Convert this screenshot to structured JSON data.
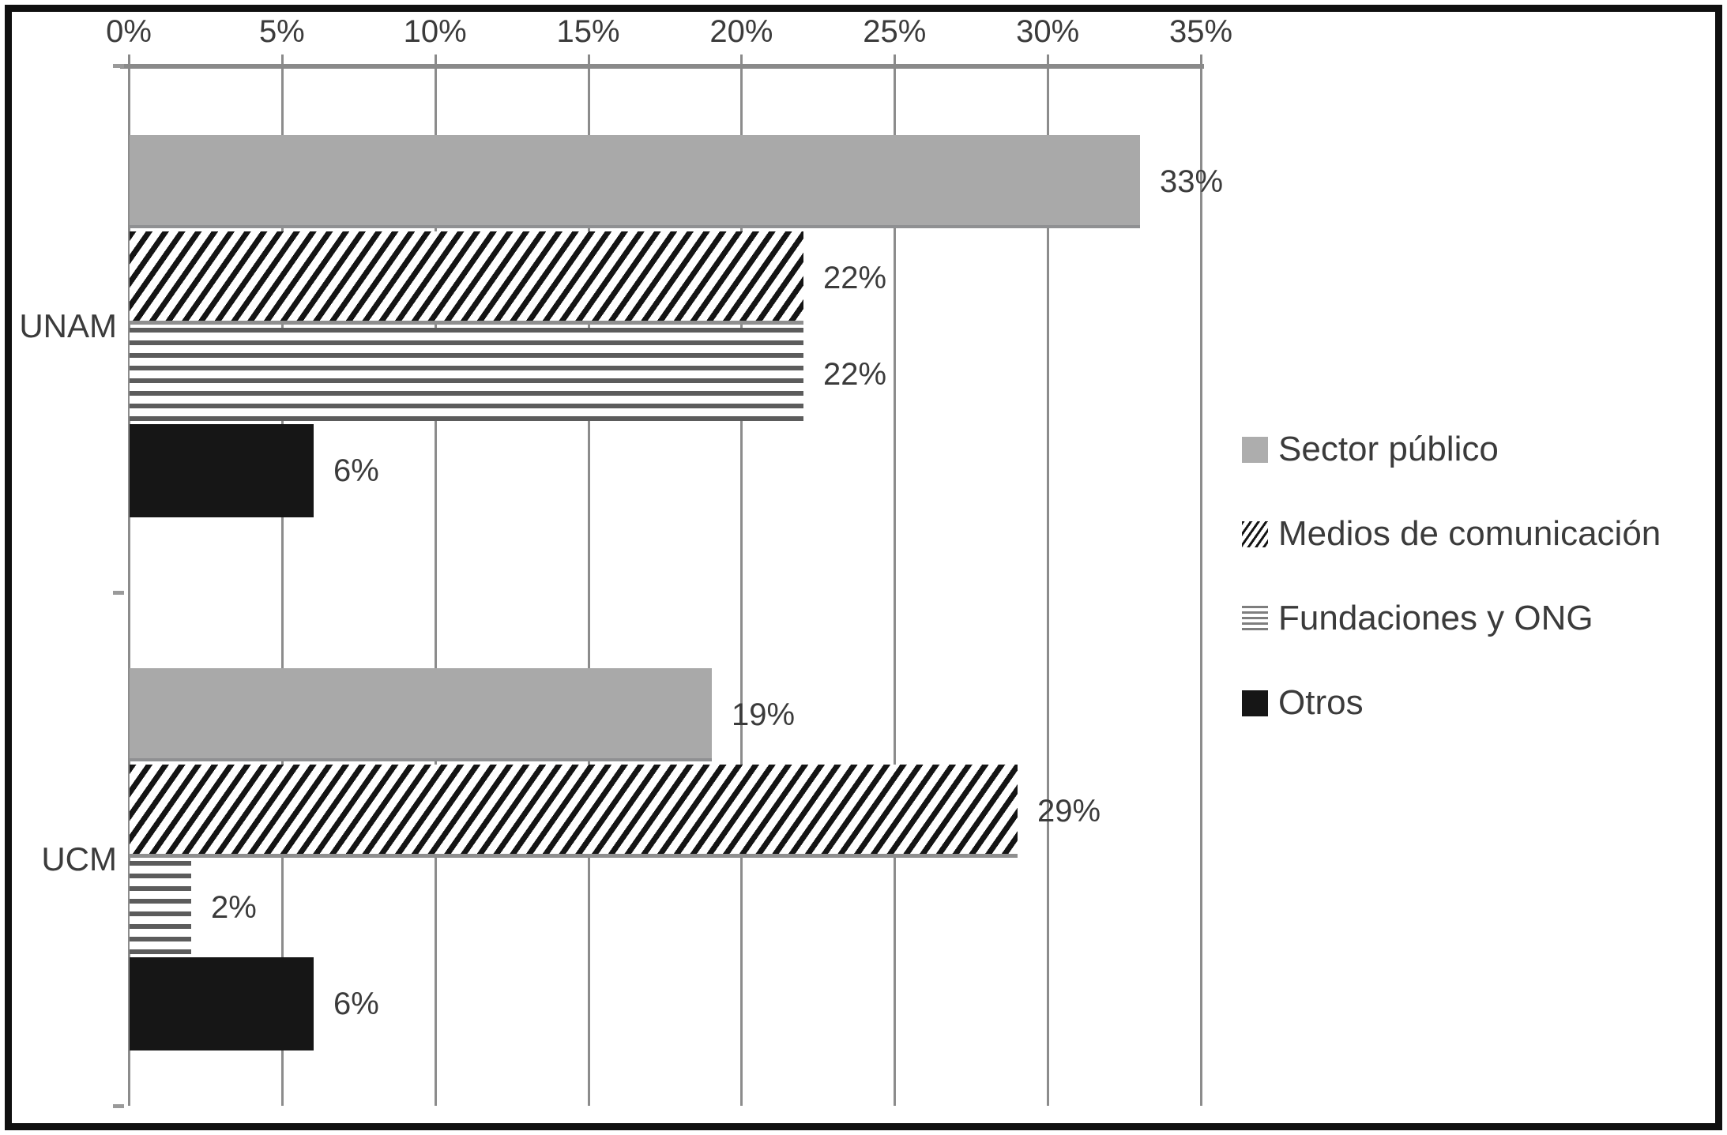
{
  "chart_data": {
    "type": "bar",
    "orientation": "horizontal",
    "title": "",
    "categories": [
      "UNAM",
      "UCM"
    ],
    "series": [
      {
        "name": "Sector público",
        "pattern": "solid-gray",
        "values": [
          33,
          19
        ],
        "labels": [
          "33%",
          "19%"
        ]
      },
      {
        "name": "Medios de comunicación",
        "pattern": "diagonal-hatch",
        "values": [
          22,
          29
        ],
        "labels": [
          "22%",
          "29%"
        ]
      },
      {
        "name": "Fundaciones y ONG",
        "pattern": "horizontal-stripes",
        "values": [
          22,
          2
        ],
        "labels": [
          "22%",
          "2%"
        ]
      },
      {
        "name": "Otros",
        "pattern": "solid-black",
        "values": [
          6,
          6
        ],
        "labels": [
          "6%",
          "6%"
        ]
      }
    ],
    "x_axis": {
      "position": "top",
      "min": 0,
      "max": 35,
      "tick_step": 5,
      "ticks": [
        "0%",
        "5%",
        "10%",
        "15%",
        "20%",
        "25%",
        "30%",
        "35%"
      ]
    },
    "grid": true,
    "legend_position": "right",
    "colors": {
      "gray_bar": "#a9a9a9",
      "black_bar": "#161616",
      "hatch_line": "#141414",
      "stripe_line": "#5c5c5c",
      "grid_line": "#8c8c8c",
      "text": "#3b3b3b",
      "frame": "#101010",
      "background": "#ffffff"
    }
  }
}
